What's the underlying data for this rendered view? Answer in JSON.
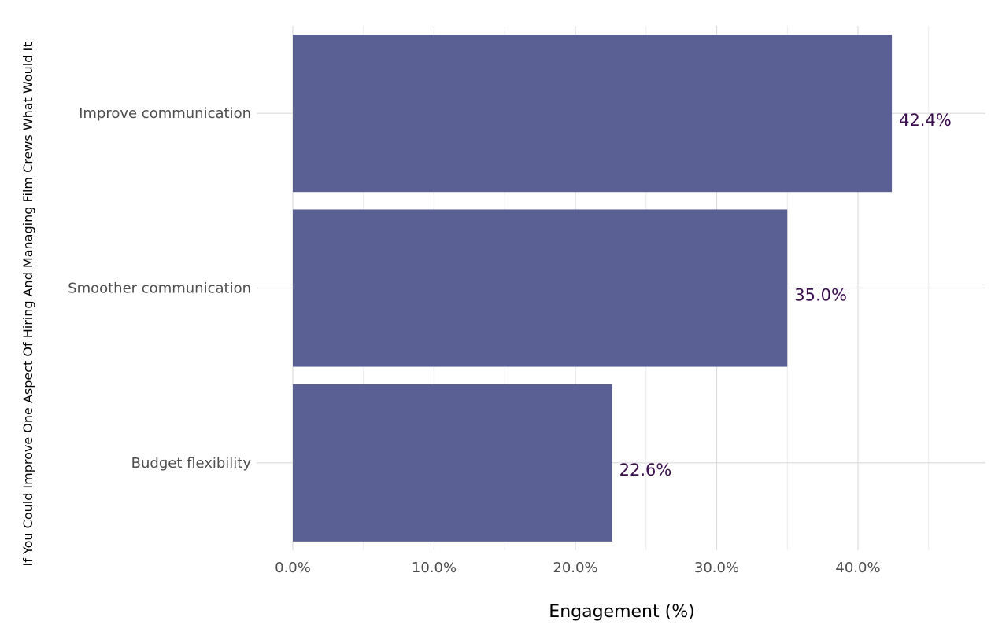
{
  "chart_data": {
    "type": "bar",
    "orientation": "horizontal",
    "categories": [
      "Improve communication",
      "Smoother communication",
      "Budget flexibility"
    ],
    "values": [
      42.4,
      35.0,
      22.6
    ],
    "value_labels": [
      "42.4%",
      "35.0%",
      "22.6%"
    ],
    "xlabel": "Engagement (%)",
    "ylabel": "If You Could Improve One Aspect Of Hiring And Managing Film Crews What Would It",
    "xlim": [
      0,
      49
    ],
    "x_ticks": [
      0,
      10,
      20,
      30,
      40
    ],
    "x_tick_labels": [
      "0.0%",
      "10.0%",
      "20.0%",
      "30.0%",
      "40.0%"
    ],
    "grid": true,
    "legend": "none",
    "bar_color": "#5b6094",
    "label_color": "#3b0f4f"
  }
}
